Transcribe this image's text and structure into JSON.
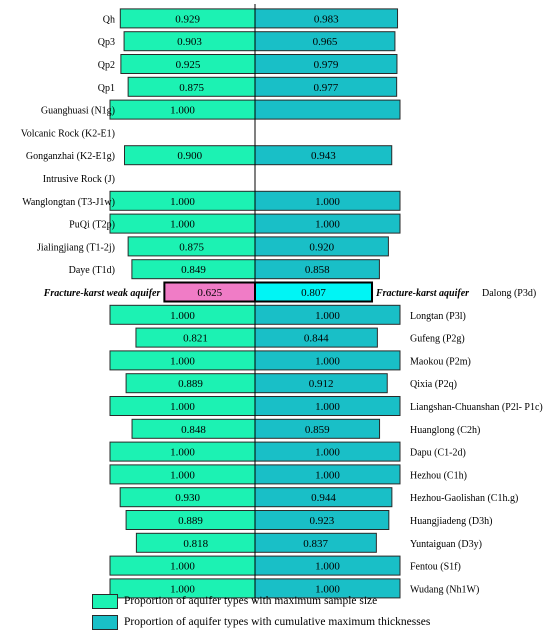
{
  "chart_data": {
    "type": "bar",
    "orientation": "horizontal-butterfly",
    "xlim": [
      0,
      1
    ],
    "grid": false,
    "legend_position": "bottom",
    "colors": {
      "left": "#1cf2b3",
      "right": "#19bfc7",
      "highlight_left": "#f07cc6",
      "highlight_right": "#00f5f5",
      "border": "#2a2a2a"
    },
    "series": [
      {
        "name": "Proportion of aquifer types with maximum sample size",
        "side": "left"
      },
      {
        "name": "Proportion of aquifer types with cumulative maximum thicknesses",
        "side": "right"
      }
    ],
    "rows": [
      {
        "label": "Qh",
        "label_side": "left",
        "left": 0.929,
        "right": 0.983,
        "left_text": "0.929",
        "right_text": "0.983"
      },
      {
        "label": "Qp3",
        "label_side": "left",
        "left": 0.903,
        "right": 0.965,
        "left_text": "0.903",
        "right_text": "0.965"
      },
      {
        "label": "Qp2",
        "label_side": "left",
        "left": 0.925,
        "right": 0.979,
        "left_text": "0.925",
        "right_text": "0.979"
      },
      {
        "label": "Qp1",
        "label_side": "left",
        "left": 0.875,
        "right": 0.977,
        "left_text": "0.875",
        "right_text": "0.977"
      },
      {
        "label": "Guanghuasi (N1g)",
        "label_side": "left",
        "left": 1.0,
        "right": 1.0,
        "left_text": "1.000",
        "right_text": ""
      },
      {
        "label": "Volcanic Rock (K2-E1)",
        "label_side": "left",
        "left": null,
        "right": null
      },
      {
        "label": "Gonganzhai (K2-E1g)",
        "label_side": "left",
        "left": 0.9,
        "right": 0.943,
        "left_text": "0.900",
        "right_text": "0.943"
      },
      {
        "label": "Intrusive Rock (J)",
        "label_side": "left",
        "left": null,
        "right": null
      },
      {
        "label": "Wanglongtan (T3-J1w)",
        "label_side": "left",
        "left": 1.0,
        "right": 1.0,
        "left_text": "1.000",
        "right_text": "1.000"
      },
      {
        "label": "PuQi (T2p)",
        "label_side": "left",
        "left": 1.0,
        "right": 1.0,
        "left_text": "1.000",
        "right_text": "1.000"
      },
      {
        "label": "Jialingjiang (T1-2j)",
        "label_side": "left",
        "left": 0.875,
        "right": 0.92,
        "left_text": "0.875",
        "right_text": "0.920"
      },
      {
        "label": "Daye (T1d)",
        "label_side": "left",
        "left": 0.849,
        "right": 0.858,
        "left_text": "0.849",
        "right_text": "0.858"
      },
      {
        "label": "Dalong (P3d)",
        "label_side": "right",
        "left": 0.625,
        "right": 0.807,
        "left_text": "0.625",
        "right_text": "0.807",
        "highlight": true,
        "left_tag": "Fracture-karst weak aquifer",
        "right_tag": "Fracture-karst aquifer"
      },
      {
        "label": "Longtan (P3l)",
        "label_side": "right",
        "left": 1.0,
        "right": 1.0,
        "left_text": "1.000",
        "right_text": "1.000"
      },
      {
        "label": "Gufeng (P2g)",
        "label_side": "right",
        "left": 0.821,
        "right": 0.844,
        "left_text": "0.821",
        "right_text": "0.844"
      },
      {
        "label": "Maokou (P2m)",
        "label_side": "right",
        "left": 1.0,
        "right": 1.0,
        "left_text": "1.000",
        "right_text": "1.000"
      },
      {
        "label": "Qixia (P2q)",
        "label_side": "right",
        "left": 0.889,
        "right": 0.912,
        "left_text": "0.889",
        "right_text": "0.912"
      },
      {
        "label": "Liangshan-Chuanshan (P2l- P1c)",
        "label_side": "right",
        "left": 1.0,
        "right": 1.0,
        "left_text": "1.000",
        "right_text": "1.000"
      },
      {
        "label": "Huanglong (C2h)",
        "label_side": "right",
        "left": 0.848,
        "right": 0.859,
        "left_text": "0.848",
        "right_text": "0.859"
      },
      {
        "label": "Dapu (C1-2d)",
        "label_side": "right",
        "left": 1.0,
        "right": 1.0,
        "left_text": "1.000",
        "right_text": "1.000"
      },
      {
        "label": "Hezhou (C1h)",
        "label_side": "right",
        "left": 1.0,
        "right": 1.0,
        "left_text": "1.000",
        "right_text": "1.000"
      },
      {
        "label": "Hezhou-Gaolishan (C1h.g)",
        "label_side": "right",
        "left": 0.93,
        "right": 0.944,
        "left_text": "0.930",
        "right_text": "0.944"
      },
      {
        "label": "Huangjiadeng (D3h)",
        "label_side": "right",
        "left": 0.889,
        "right": 0.923,
        "left_text": "0.889",
        "right_text": "0.923"
      },
      {
        "label": "Yuntaiguan (D3y)",
        "label_side": "right",
        "left": 0.818,
        "right": 0.837,
        "left_text": "0.818",
        "right_text": "0.837"
      },
      {
        "label": "Fentou (S1f)",
        "label_side": "right",
        "left": 1.0,
        "right": 1.0,
        "left_text": "1.000",
        "right_text": "1.000"
      },
      {
        "label": "Wudang (Nh1W)",
        "label_side": "right",
        "left": 1.0,
        "right": 1.0,
        "left_text": "1.000",
        "right_text": "1.000"
      }
    ]
  },
  "legend": {
    "items": [
      {
        "label": "Proportion of aquifer types with maximum sample size",
        "color": "#1cf2b3"
      },
      {
        "label": "Proportion of aquifer types with cumulative maximum thicknesses",
        "color": "#19bfc7"
      }
    ]
  }
}
